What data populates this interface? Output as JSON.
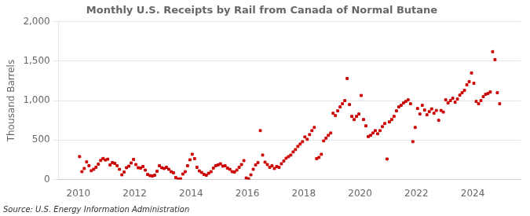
{
  "chart_data": {
    "type": "scatter",
    "title": "Monthly U.S. Receipts by Rail from Canada of Normal Butane",
    "y_label": "Thousand Barrels",
    "annotations": [
      "Source: U.S. Energy Information Administration"
    ],
    "color": "#cc0000",
    "marker": "square",
    "grid": "y",
    "xlim": [
      2009.3,
      2025.7
    ],
    "xticks": [
      2010,
      2012,
      2014,
      2016,
      2018,
      2020,
      2022,
      2024
    ],
    "ylim": [
      0,
      2000
    ],
    "yticks": [
      0,
      500,
      {
        "value": 1000,
        "label": "1,000"
      },
      {
        "value": 1500,
        "label": "1,500"
      },
      {
        "value": 2000,
        "label": "2,000"
      }
    ],
    "x": [
      2010.0416667,
      2010.125,
      2010.2083333,
      2010.2916667,
      2010.375,
      2010.4583333,
      2010.5416667,
      2010.625,
      2010.7083333,
      2010.7916667,
      2010.875,
      2010.9583333,
      2011.0416667,
      2011.125,
      2011.2083333,
      2011.2916667,
      2011.375,
      2011.4583333,
      2011.5416667,
      2011.625,
      2011.7083333,
      2011.7916667,
      2011.875,
      2011.9583333,
      2012.0416667,
      2012.125,
      2012.2083333,
      2012.2916667,
      2012.375,
      2012.4583333,
      2012.5416667,
      2012.625,
      2012.7083333,
      2012.7916667,
      2012.875,
      2012.9583333,
      2013.0416667,
      2013.125,
      2013.2083333,
      2013.2916667,
      2013.375,
      2013.4583333,
      2013.5416667,
      2013.625,
      2013.7083333,
      2013.7916667,
      2013.875,
      2013.9583333,
      2014.0416667,
      2014.125,
      2014.2083333,
      2014.2916667,
      2014.375,
      2014.4583333,
      2014.5416667,
      2014.625,
      2014.7083333,
      2014.7916667,
      2014.875,
      2014.9583333,
      2015.0416667,
      2015.125,
      2015.2083333,
      2015.2916667,
      2015.375,
      2015.4583333,
      2015.5416667,
      2015.625,
      2015.7083333,
      2015.7916667,
      2015.875,
      2015.9583333,
      2016.0416667,
      2016.125,
      2016.2083333,
      2016.2916667,
      2016.375,
      2016.4583333,
      2016.5416667,
      2016.625,
      2016.7083333,
      2016.7916667,
      2016.875,
      2016.9583333,
      2017.0416667,
      2017.125,
      2017.2083333,
      2017.2916667,
      2017.375,
      2017.4583333,
      2017.5416667,
      2017.625,
      2017.7083333,
      2017.7916667,
      2017.875,
      2017.9583333,
      2018.0416667,
      2018.125,
      2018.2083333,
      2018.2916667,
      2018.375,
      2018.4583333,
      2018.5416667,
      2018.625,
      2018.7083333,
      2018.7916667,
      2018.875,
      2018.9583333,
      2019.0416667,
      2019.125,
      2019.2083333,
      2019.2916667,
      2019.375,
      2019.4583333,
      2019.5416667,
      2019.625,
      2019.7083333,
      2019.7916667,
      2019.875,
      2019.9583333,
      2020.0416667,
      2020.125,
      2020.2083333,
      2020.2916667,
      2020.375,
      2020.4583333,
      2020.5416667,
      2020.625,
      2020.7083333,
      2020.7916667,
      2020.875,
      2020.9583333,
      2021.0416667,
      2021.125,
      2021.2083333,
      2021.2916667,
      2021.375,
      2021.4583333,
      2021.5416667,
      2021.625,
      2021.7083333,
      2021.7916667,
      2021.875,
      2021.9583333,
      2022.0416667,
      2022.125,
      2022.2083333,
      2022.2916667,
      2022.375,
      2022.4583333,
      2022.5416667,
      2022.625,
      2022.7083333,
      2022.7916667,
      2022.875,
      2022.9583333,
      2023.0416667,
      2023.125,
      2023.2083333,
      2023.2916667,
      2023.375,
      2023.4583333,
      2023.5416667,
      2023.625,
      2023.7083333,
      2023.7916667,
      2023.875,
      2023.9583333,
      2024.0416667,
      2024.125,
      2024.2083333,
      2024.2916667,
      2024.375,
      2024.4583333,
      2024.5416667,
      2024.625,
      2024.7083333,
      2024.7916667,
      2024.875,
      2024.9583333
    ],
    "values": [
      291,
      100,
      140,
      224,
      176,
      112,
      130,
      155,
      195,
      242,
      267,
      248,
      258,
      185,
      215,
      205,
      175,
      130,
      60,
      95,
      150,
      170,
      210,
      255,
      190,
      150,
      145,
      165,
      120,
      65,
      50,
      45,
      55,
      105,
      175,
      150,
      140,
      155,
      130,
      100,
      85,
      25,
      5,
      10,
      70,
      100,
      175,
      250,
      320,
      265,
      155,
      110,
      90,
      65,
      55,
      80,
      100,
      145,
      175,
      185,
      200,
      170,
      175,
      145,
      130,
      100,
      95,
      120,
      155,
      190,
      240,
      20,
      10,
      60,
      130,
      185,
      215,
      620,
      310,
      220,
      190,
      155,
      175,
      140,
      165,
      155,
      200,
      235,
      270,
      290,
      310,
      350,
      380,
      420,
      450,
      480,
      540,
      510,
      570,
      620,
      660,
      265,
      280,
      320,
      490,
      525,
      560,
      590,
      840,
      810,
      870,
      920,
      960,
      1000,
      1280,
      950,
      800,
      760,
      800,
      830,
      1065,
      760,
      680,
      545,
      560,
      590,
      620,
      580,
      620,
      670,
      710,
      260,
      730,
      760,
      800,
      870,
      920,
      940,
      970,
      990,
      1010,
      960,
      480,
      660,
      900,
      830,
      940,
      880,
      820,
      860,
      895,
      840,
      875,
      750,
      875,
      855,
      1010,
      970,
      1000,
      1030,
      980,
      1020,
      1070,
      1100,
      1130,
      1200,
      1240,
      1350,
      1220,
      990,
      960,
      1000,
      1050,
      1080,
      1090,
      1110,
      1620,
      1520,
      1100,
      960
    ]
  }
}
